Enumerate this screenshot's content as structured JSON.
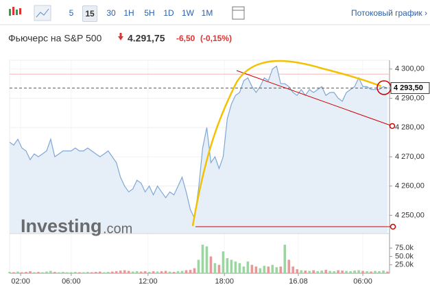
{
  "toolbar": {
    "intervals": [
      "5",
      "15",
      "30",
      "1H",
      "5H",
      "1D",
      "1W",
      "1M"
    ],
    "active": 1,
    "stream_link": "Потоковый график ›"
  },
  "header": {
    "title": "Фьючерс на S&P 500",
    "price": "4.291,75",
    "change": "-6,50",
    "change_pct": "(-0,15%)"
  },
  "watermark": {
    "brand": "Investing",
    "suffix": ".com"
  },
  "chart_data": {
    "type": "line",
    "series": [
      {
        "name": "Price",
        "color": "#7fa7d6",
        "fill": "#e6eef7",
        "values": [
          4275,
          4274,
          4276,
          4273,
          4272,
          4269,
          4271,
          4270,
          4271,
          4272,
          4276,
          4270,
          4271,
          4272,
          4272,
          4272,
          4273,
          4272,
          4272,
          4273,
          4272,
          4271,
          4270,
          4271,
          4272,
          4270,
          4268,
          4263,
          4260,
          4258,
          4259,
          4262,
          4261,
          4258,
          4260,
          4257,
          4260,
          4258,
          4256,
          4258,
          4257,
          4260,
          4263,
          4258,
          4252,
          4249,
          4259,
          4273,
          4280,
          4268,
          4270,
          4266,
          4270,
          4283,
          4288,
          4291,
          4292,
          4296,
          4297,
          4294,
          4292,
          4294,
          4297,
          4296,
          4300,
          4301,
          4295,
          4295,
          4294,
          4292,
          4291,
          4293,
          4291,
          4293,
          4292,
          4293,
          4294,
          4291,
          4292,
          4292,
          4290,
          4289,
          4292,
          4293,
          4294,
          4297,
          4294,
          4294,
          4293,
          4293,
          4293,
          4294,
          4293.5
        ]
      },
      {
        "name": "Volume",
        "up_color": "#9ed3a3",
        "down_color": "#e59a9a",
        "axis": "y2",
        "values": [
          4000,
          3000,
          5000,
          3000,
          4000,
          6000,
          3000,
          4000,
          3000,
          5000,
          7000,
          4000,
          3000,
          4000,
          3000,
          3000,
          4000,
          3000,
          3000,
          4000,
          3000,
          4000,
          5000,
          3000,
          4000,
          5000,
          6000,
          8000,
          9000,
          7000,
          5000,
          6000,
          5000,
          6000,
          4000,
          6000,
          5000,
          6000,
          7000,
          5000,
          4000,
          6000,
          7000,
          9000,
          10000,
          15000,
          40000,
          85000,
          80000,
          50000,
          30000,
          25000,
          65000,
          45000,
          40000,
          35000,
          30000,
          20000,
          35000,
          25000,
          20000,
          15000,
          22000,
          20000,
          25000,
          18000,
          20000,
          85000,
          40000,
          20000,
          12000,
          9000,
          8000,
          7000,
          9000,
          6000,
          8000,
          10000,
          7000,
          6000,
          9000,
          8000,
          7000,
          6000,
          8000,
          9000,
          7000,
          6000,
          5000,
          7000,
          6000,
          8000,
          5000
        ]
      }
    ],
    "xlim": [
      0,
      92.5
    ],
    "xticks": [
      {
        "value": 2.7,
        "label": "02:00"
      },
      {
        "value": 15,
        "label": "06:00"
      },
      {
        "value": 33.7,
        "label": "12:00"
      },
      {
        "value": 52.3,
        "label": "18:00"
      },
      {
        "value": 70.3,
        "label": "16.08"
      },
      {
        "value": 86,
        "label": "06:00"
      }
    ],
    "ylim": [
      4244,
      4303
    ],
    "yticks": [
      {
        "value": 4250,
        "label": "4 250,00"
      },
      {
        "value": 4260,
        "label": "4 260,00"
      },
      {
        "value": 4270,
        "label": "4 270,00"
      },
      {
        "value": 4280,
        "label": "4 280,00"
      },
      {
        "value": 4290,
        "label": "4 290,00"
      },
      {
        "value": 4300,
        "label": "4 300,00"
      }
    ],
    "y2lim": [
      0,
      110000
    ],
    "y2ticks": [
      {
        "value": 25000,
        "label": "25.0k"
      },
      {
        "value": 50000,
        "label": "50.0k"
      },
      {
        "value": 75000,
        "label": "75.0k"
      }
    ],
    "current_price": {
      "value": 4293.5,
      "label": "4 293,50"
    },
    "previous_close": 4298.25,
    "grid": true
  }
}
